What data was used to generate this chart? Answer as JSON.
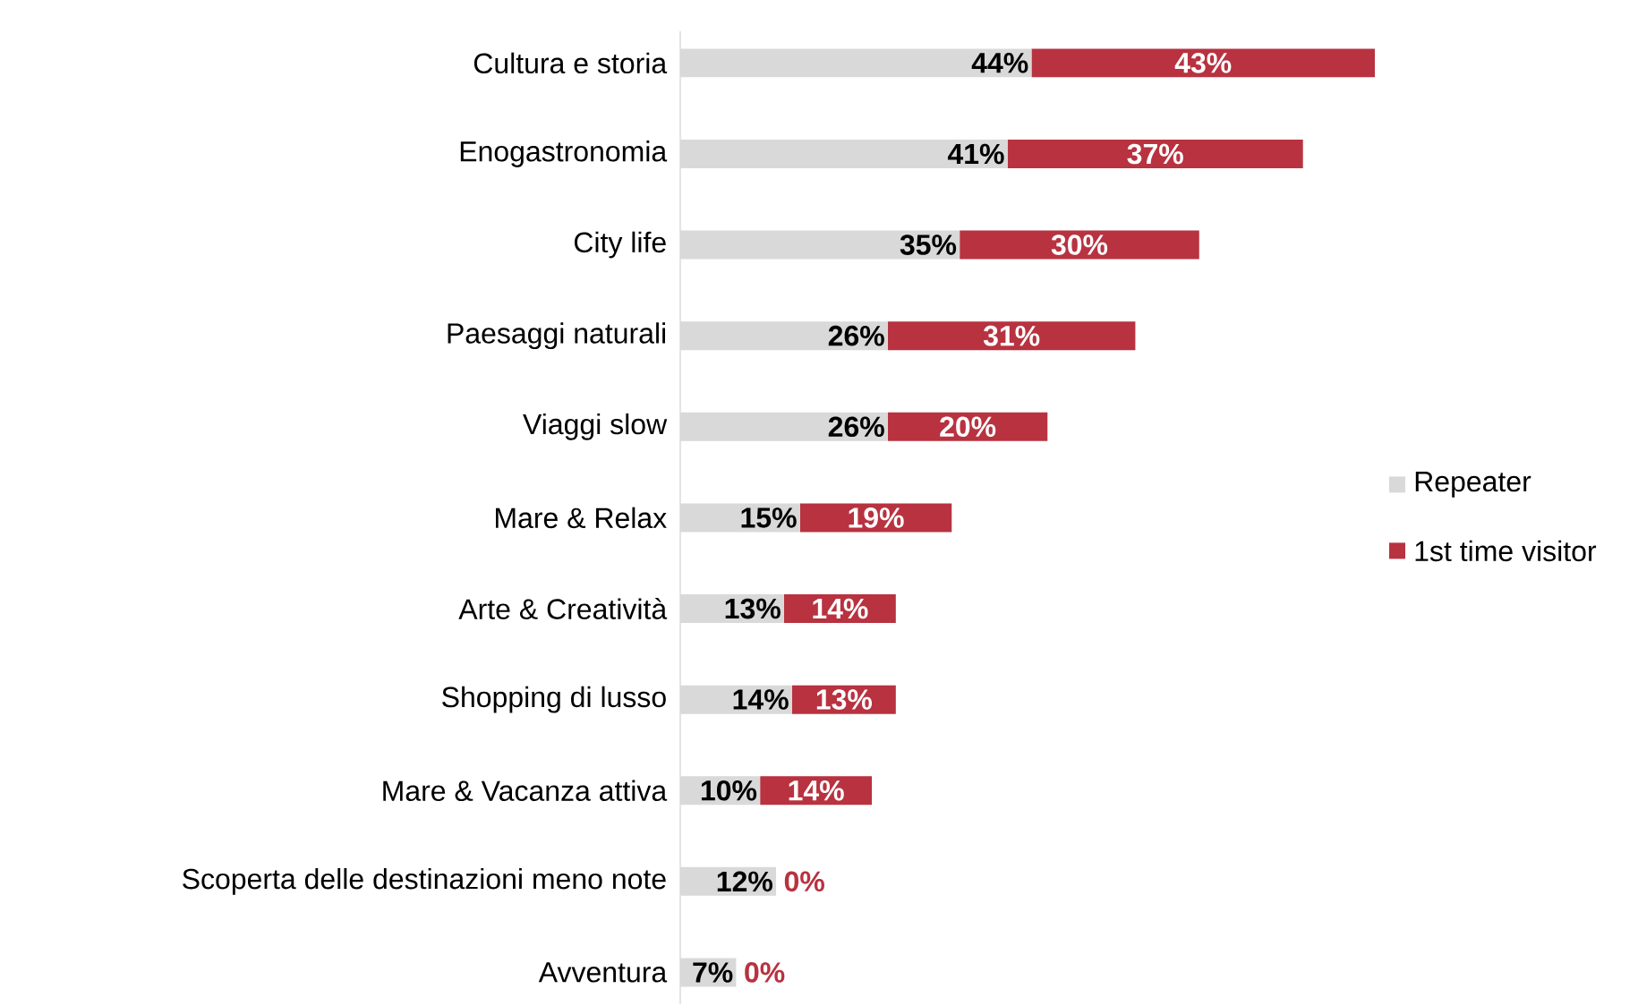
{
  "chart_data": {
    "type": "bar",
    "orientation": "horizontal",
    "stacked": true,
    "categories": [
      "Cultura e storia",
      "Enogastronomia",
      "City life",
      "Paesaggi naturali",
      "Viaggi slow",
      "Mare & Relax",
      "Arte & Creatività",
      "Shopping di lusso",
      "Mare & Vacanza attiva",
      "Scoperta delle destinazioni meno note",
      "Avventura"
    ],
    "series": [
      {
        "name": "Repeater",
        "color": "#d9d9d9",
        "values": [
          44,
          41,
          35,
          26,
          26,
          15,
          13,
          14,
          10,
          12,
          7
        ],
        "value_labels": [
          "44%",
          "41%",
          "35%",
          "26%",
          "26%",
          "15%",
          "13%",
          "14%",
          "10%",
          "12%",
          "7%"
        ]
      },
      {
        "name": "1st time visitor",
        "color": "#b83240",
        "values": [
          43,
          37,
          30,
          31,
          20,
          19,
          14,
          13,
          14,
          0,
          0
        ],
        "value_labels": [
          "43%",
          "37%",
          "30%",
          "31%",
          "20%",
          "19%",
          "14%",
          "13%",
          "14%",
          "0%",
          "0%"
        ]
      }
    ],
    "legend": "right"
  }
}
